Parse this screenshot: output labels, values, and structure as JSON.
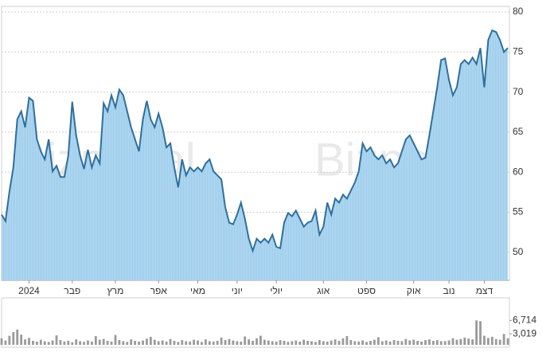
{
  "watermark": "Bizportal",
  "chart_data": [
    {
      "type": "line",
      "color": "#2f6f9c",
      "fill": "#a9d3ee",
      "grid": true,
      "xlim": [
        0,
        129
      ],
      "ylim": [
        46.5,
        80.7
      ],
      "yticks": [
        50,
        55,
        60,
        65,
        70,
        75,
        80
      ],
      "xticks": [
        {
          "value": 7,
          "label": "2024"
        },
        {
          "value": 18,
          "label": "פבר"
        },
        {
          "value": 29,
          "label": "מרץ"
        },
        {
          "value": 40,
          "label": "אפר"
        },
        {
          "value": 50,
          "label": "מאי"
        },
        {
          "value": 60,
          "label": "יוני"
        },
        {
          "value": 70,
          "label": "יולי"
        },
        {
          "value": 82,
          "label": "אוג"
        },
        {
          "value": 93,
          "label": "ספט"
        },
        {
          "value": 105,
          "label": "אוק"
        },
        {
          "value": 114,
          "label": "נוב"
        },
        {
          "value": 123,
          "label": "דצמ"
        }
      ],
      "values": [
        54.7,
        53.9,
        57.6,
        60.6,
        66.6,
        67.6,
        65.6,
        69.3,
        68.9,
        64.1,
        62.6,
        61.6,
        64.1,
        60.1,
        60.8,
        59.4,
        59.4,
        62.1,
        68.8,
        64.6,
        62.1,
        60.4,
        62.8,
        60.6,
        62.1,
        61.1,
        68.6,
        67.6,
        69.6,
        68.1,
        70.3,
        69.6,
        67.6,
        65.6,
        64.1,
        62.6,
        66.6,
        68.9,
        66.6,
        65.6,
        67.3,
        65.6,
        63.1,
        63.6,
        60.6,
        58.1,
        61.6,
        59.6,
        60.6,
        60.1,
        60.6,
        60.1,
        61.1,
        61.6,
        60.1,
        59.6,
        59.1,
        55.6,
        53.7,
        53.5,
        54.7,
        56.2,
        54.2,
        51.7,
        50.2,
        51.7,
        51.2,
        51.7,
        51.2,
        52.2,
        50.7,
        50.5,
        53.7,
        54.9,
        54.5,
        55.2,
        54.2,
        53.2,
        53.7,
        53.9,
        55.2,
        52.2,
        53.2,
        56.2,
        54.7,
        56.7,
        56.2,
        57.2,
        56.7,
        57.7,
        58.7,
        60.1,
        63.6,
        62.6,
        63.1,
        62.1,
        61.6,
        62.1,
        61.1,
        61.6,
        60.6,
        61.1,
        62.6,
        64.1,
        64.6,
        63.6,
        62.6,
        61.6,
        61.8,
        64.6,
        67.6,
        70.6,
        74.0,
        74.2,
        71.5,
        69.6,
        70.6,
        73.5,
        74.0,
        73.5,
        74.3,
        73.5,
        75.5,
        70.6,
        76.5,
        77.7,
        77.5,
        76.5,
        75.0,
        75.5
      ]
    },
    {
      "type": "bar",
      "color": "#9a9a9a",
      "xlim": [
        0,
        129
      ],
      "ylim": [
        0,
        12900
      ],
      "yticks": [
        {
          "value": 3019,
          "label": "3,019"
        },
        {
          "value": 6714,
          "label": "6,714"
        }
      ],
      "values": [
        1800,
        1200,
        2500,
        3500,
        4200,
        2800,
        1500,
        1900,
        1100,
        900,
        1400,
        1000,
        800,
        1200,
        2600,
        1300,
        900,
        1100,
        700,
        1500,
        1000,
        800,
        1200,
        900,
        2400,
        1400,
        1600,
        1100,
        900,
        2700,
        1300,
        1000,
        800,
        1500,
        1100,
        900,
        1200,
        1700,
        2200,
        1400,
        1000,
        1200,
        900,
        1600,
        1100,
        800,
        1300,
        1000,
        900,
        1400,
        1200,
        800,
        1500,
        1000,
        900,
        1100,
        2000,
        1300,
        1600,
        1200,
        1000,
        900,
        2300,
        1500,
        1100,
        1800,
        2500,
        1400,
        1200,
        1000,
        900,
        1300,
        1100,
        800,
        1000,
        1200,
        900,
        1400,
        1100,
        1000,
        800,
        1300,
        1000,
        900,
        1200,
        1500,
        1100,
        1800,
        2400,
        1300,
        1000,
        900,
        1200,
        800,
        1100,
        1400,
        2100,
        1000,
        1200,
        900,
        1300,
        1100,
        1000,
        1600,
        1200,
        1400,
        1100,
        900,
        1300,
        1500,
        1100,
        1300,
        1000,
        1000,
        1200,
        1800,
        1400,
        1600,
        2000,
        1700,
        1500,
        6700,
        6500,
        2500,
        1900,
        2200,
        1600,
        1400,
        3000,
        1800
      ]
    }
  ]
}
